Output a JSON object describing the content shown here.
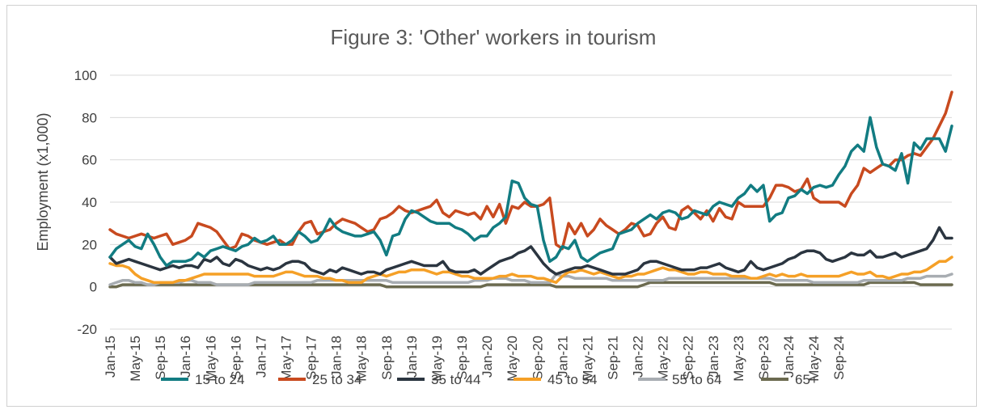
{
  "chart_data": {
    "type": "line",
    "title": "Figure 3: 'Other' workers in tourism",
    "xlabel": "",
    "ylabel": "Employment (x1,000)",
    "ylim": [
      -20,
      100
    ],
    "yticks": [
      -20,
      0,
      20,
      40,
      60,
      80,
      100
    ],
    "xtick_labels": [
      "Jan-15",
      "May-15",
      "Sep-15",
      "Jan-16",
      "May-16",
      "Sep-16",
      "Jan-17",
      "May-17",
      "Sep-17",
      "Jan-18",
      "May-18",
      "Sep-18",
      "Jan-19",
      "May-19",
      "Sep-19",
      "Jan-20",
      "May-20",
      "Sep-20",
      "Jan-21",
      "May-21",
      "Sep-21",
      "Jan-22",
      "May-22",
      "Sep-22",
      "Jan-23",
      "May-23",
      "Sep-23",
      "Jan-24",
      "May-24",
      "Sep-24"
    ],
    "grid": true,
    "legend_position": "bottom",
    "x_start": "Jan-15",
    "x_end": "Oct-24",
    "series": [
      {
        "name": "15 to 24",
        "color": "#127C82",
        "width": 3.5,
        "values": [
          14,
          18,
          20,
          22,
          19,
          18,
          25,
          20,
          14,
          10,
          12,
          12,
          12,
          13,
          16,
          14,
          17,
          18,
          19,
          18,
          17,
          19,
          20,
          23,
          21,
          22,
          24,
          20,
          20,
          22,
          26,
          24,
          21,
          22,
          26,
          32,
          28,
          26,
          25,
          24,
          24,
          25,
          26,
          22,
          15,
          24,
          25,
          32,
          36,
          35,
          33,
          31,
          30,
          30,
          30,
          28,
          27,
          25,
          22,
          24,
          24,
          28,
          30,
          33,
          50,
          49,
          42,
          39,
          38,
          22,
          12,
          14,
          19,
          18,
          22,
          14,
          12,
          14,
          16,
          17,
          18,
          25,
          26,
          27,
          30,
          32,
          34,
          32,
          35,
          36,
          35,
          32,
          33,
          36,
          35,
          34,
          38,
          40,
          39,
          38,
          42,
          44,
          48,
          45,
          48,
          31,
          34,
          35,
          42,
          43,
          46,
          44,
          47,
          48,
          47,
          48,
          53,
          57,
          64,
          67,
          64,
          80,
          66,
          58,
          57,
          55,
          63,
          49,
          68,
          65,
          70,
          70,
          70,
          64,
          76
        ]
      },
      {
        "name": "25 to 34",
        "color": "#C84A1F",
        "width": 3.5,
        "values": [
          27,
          25,
          24,
          23,
          24,
          25,
          24,
          23,
          24,
          25,
          20,
          21,
          22,
          24,
          30,
          29,
          28,
          26,
          22,
          18,
          19,
          25,
          24,
          22,
          21,
          20,
          21,
          22,
          20,
          20,
          26,
          30,
          31,
          25,
          26,
          27,
          30,
          32,
          31,
          30,
          28,
          26,
          27,
          32,
          33,
          35,
          38,
          36,
          35,
          36,
          37,
          38,
          41,
          35,
          33,
          36,
          35,
          34,
          35,
          32,
          38,
          33,
          39,
          30,
          38,
          37,
          40,
          38,
          38,
          39,
          42,
          20,
          18,
          30,
          25,
          30,
          24,
          27,
          32,
          29,
          27,
          25,
          27,
          30,
          29,
          24,
          25,
          30,
          33,
          28,
          27,
          36,
          38,
          35,
          32,
          36,
          31,
          37,
          33,
          32,
          40,
          38,
          38,
          38,
          38,
          42,
          48,
          48,
          47,
          45,
          46,
          51,
          42,
          40,
          40,
          40,
          40,
          38,
          44,
          48,
          56,
          54,
          56,
          58,
          57,
          60,
          60,
          62,
          63,
          62,
          66,
          70,
          76,
          82,
          92
        ]
      },
      {
        "name": "35 to 44",
        "color": "#2B3540",
        "width": 3.5,
        "values": [
          14,
          11,
          12,
          13,
          12,
          11,
          10,
          9,
          8,
          9,
          10,
          9,
          10,
          10,
          9,
          13,
          12,
          14,
          11,
          10,
          13,
          12,
          10,
          9,
          8,
          9,
          8,
          9,
          11,
          12,
          12,
          11,
          8,
          7,
          6,
          8,
          7,
          9,
          8,
          7,
          6,
          7,
          7,
          6,
          8,
          9,
          10,
          11,
          12,
          11,
          10,
          10,
          10,
          12,
          8,
          7,
          7,
          7,
          8,
          6,
          8,
          10,
          12,
          13,
          14,
          16,
          17,
          19,
          15,
          11,
          8,
          6,
          7,
          8,
          9,
          9,
          10,
          9,
          8,
          7,
          6,
          6,
          6,
          7,
          8,
          11,
          12,
          12,
          11,
          10,
          9,
          8,
          8,
          8,
          9,
          9,
          10,
          11,
          9,
          8,
          7,
          8,
          12,
          9,
          8,
          9,
          10,
          11,
          13,
          14,
          16,
          17,
          17,
          16,
          13,
          12,
          13,
          14,
          16,
          15,
          15,
          17,
          14,
          14,
          15,
          16,
          14,
          15,
          16,
          17,
          18,
          22,
          28,
          23,
          23
        ]
      },
      {
        "name": "45 to 54",
        "color": "#F5A027",
        "width": 3.5,
        "values": [
          11,
          10,
          10,
          9,
          6,
          4,
          3,
          2,
          2,
          2,
          2,
          3,
          3,
          4,
          5,
          6,
          6,
          6,
          6,
          6,
          6,
          6,
          6,
          5,
          5,
          5,
          5,
          6,
          7,
          7,
          6,
          5,
          5,
          5,
          4,
          4,
          3,
          3,
          2,
          2,
          2,
          4,
          5,
          6,
          5,
          6,
          7,
          7,
          8,
          8,
          8,
          7,
          6,
          7,
          7,
          6,
          5,
          5,
          4,
          4,
          4,
          4,
          5,
          5,
          6,
          5,
          5,
          5,
          4,
          4,
          3,
          2,
          5,
          7,
          7,
          8,
          7,
          6,
          7,
          6,
          5,
          4,
          5,
          5,
          6,
          6,
          7,
          8,
          9,
          8,
          8,
          7,
          6,
          6,
          7,
          7,
          6,
          6,
          6,
          5,
          5,
          5,
          4,
          4,
          5,
          6,
          5,
          6,
          5,
          5,
          6,
          5,
          5,
          5,
          5,
          5,
          5,
          6,
          7,
          6,
          6,
          7,
          5,
          5,
          4,
          5,
          6,
          6,
          7,
          7,
          8,
          10,
          12,
          12,
          14
        ]
      },
      {
        "name": "55 to 64",
        "color": "#A8ADB2",
        "width": 3.5,
        "values": [
          1,
          2,
          3,
          3,
          2,
          2,
          1,
          1,
          2,
          2,
          2,
          2,
          3,
          3,
          2,
          2,
          2,
          1,
          1,
          1,
          1,
          1,
          1,
          2,
          2,
          2,
          2,
          2,
          2,
          2,
          2,
          2,
          2,
          3,
          3,
          3,
          3,
          3,
          3,
          3,
          3,
          3,
          3,
          3,
          3,
          2,
          2,
          2,
          2,
          2,
          2,
          2,
          2,
          2,
          2,
          2,
          2,
          2,
          3,
          3,
          3,
          4,
          4,
          4,
          3,
          3,
          3,
          2,
          2,
          2,
          2,
          6,
          5,
          5,
          4,
          4,
          4,
          4,
          4,
          4,
          3,
          3,
          3,
          3,
          3,
          3,
          3,
          3,
          3,
          4,
          4,
          4,
          4,
          4,
          4,
          4,
          4,
          4,
          4,
          4,
          4,
          4,
          4,
          4,
          4,
          4,
          3,
          3,
          3,
          3,
          3,
          3,
          2,
          2,
          2,
          2,
          2,
          2,
          2,
          2,
          3,
          3,
          3,
          3,
          3,
          3,
          3,
          4,
          4,
          4,
          5,
          5,
          5,
          5,
          6
        ]
      },
      {
        "name": "65+",
        "color": "#6B6A4F",
        "width": 3.5,
        "values": [
          0,
          0,
          1,
          1,
          1,
          1,
          1,
          1,
          1,
          1,
          1,
          1,
          1,
          1,
          1,
          1,
          1,
          1,
          1,
          1,
          1,
          1,
          1,
          1,
          1,
          1,
          1,
          1,
          1,
          1,
          1,
          1,
          1,
          1,
          1,
          1,
          1,
          1,
          1,
          1,
          1,
          1,
          1,
          1,
          0,
          0,
          0,
          0,
          0,
          0,
          0,
          0,
          0,
          0,
          0,
          0,
          0,
          0,
          0,
          0,
          1,
          1,
          1,
          1,
          1,
          1,
          1,
          1,
          1,
          1,
          1,
          0,
          0,
          0,
          0,
          0,
          0,
          0,
          0,
          0,
          0,
          0,
          0,
          0,
          0,
          1,
          2,
          2,
          2,
          2,
          2,
          2,
          2,
          2,
          2,
          2,
          2,
          2,
          2,
          2,
          2,
          2,
          2,
          2,
          2,
          2,
          1,
          1,
          1,
          1,
          1,
          1,
          1,
          1,
          1,
          1,
          1,
          1,
          1,
          1,
          1,
          2,
          2,
          2,
          2,
          2,
          2,
          2,
          2,
          1,
          1,
          1,
          1,
          1,
          1
        ]
      }
    ]
  }
}
